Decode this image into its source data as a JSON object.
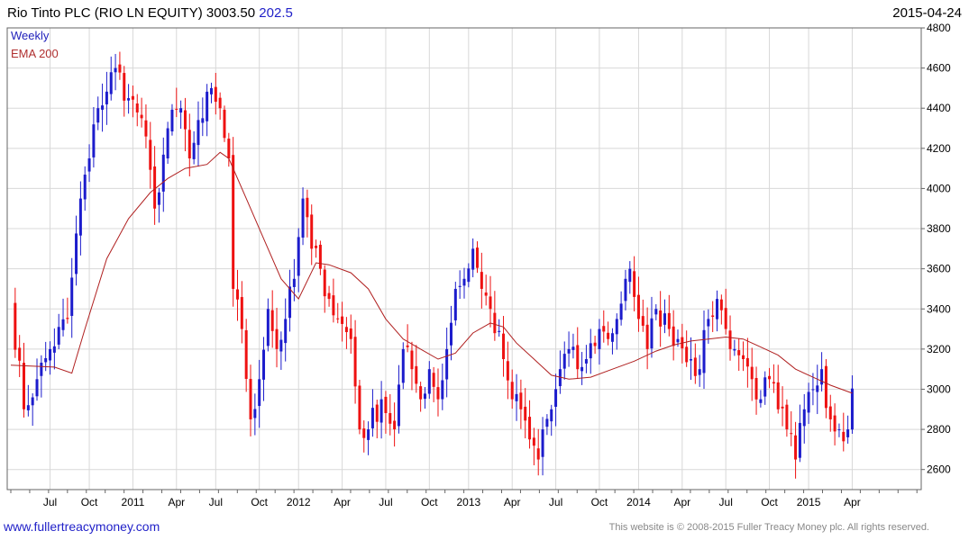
{
  "header": {
    "title": "Rio Tinto PLC (RIO LN EQUITY)",
    "last_price": "3003.50",
    "change": "202.5",
    "date": "2015-04-24"
  },
  "legend": {
    "weekly": "Weekly",
    "ema": "EMA 200"
  },
  "footer": {
    "website": "www.fullertreacymoney.com",
    "copyright": "This website is © 2008-2015 Fuller Treacy Money plc. All rights reserved."
  },
  "colors": {
    "up": "#1c1ccc",
    "down": "#ee1111",
    "ema": "#b02020",
    "grid": "#d8d8d8",
    "axis": "#666666"
  },
  "chart_data": {
    "type": "candlestick",
    "frequency": "weekly",
    "grid": true,
    "legend_position": "top-left",
    "y_axis_side": "right",
    "ylim": [
      2500,
      4800
    ],
    "yticks": [
      2600,
      2800,
      3000,
      3200,
      3400,
      3600,
      3800,
      4000,
      4200,
      4400,
      4600,
      4800
    ],
    "xlim": [
      0,
      208
    ],
    "xticks": [
      {
        "label": "Jul",
        "week": 9
      },
      {
        "label": "Oct",
        "week": 18
      },
      {
        "label": "2011",
        "week": 28
      },
      {
        "label": "Apr",
        "week": 38
      },
      {
        "label": "Jul",
        "week": 47
      },
      {
        "label": "Oct",
        "week": 57
      },
      {
        "label": "2012",
        "week": 66
      },
      {
        "label": "Apr",
        "week": 76
      },
      {
        "label": "Jul",
        "week": 86
      },
      {
        "label": "Oct",
        "week": 96
      },
      {
        "label": "2013",
        "week": 105
      },
      {
        "label": "Apr",
        "week": 115
      },
      {
        "label": "Jul",
        "week": 125
      },
      {
        "label": "Oct",
        "week": 135
      },
      {
        "label": "2014",
        "week": 144
      },
      {
        "label": "Apr",
        "week": 154
      },
      {
        "label": "Jul",
        "week": 164
      },
      {
        "label": "Oct",
        "week": 174
      },
      {
        "label": "2015",
        "week": 183
      },
      {
        "label": "Apr",
        "week": 193
      }
    ],
    "ema_200": [
      [
        0,
        3120
      ],
      [
        10,
        3110
      ],
      [
        14,
        3080
      ],
      [
        17,
        3300
      ],
      [
        22,
        3650
      ],
      [
        27,
        3850
      ],
      [
        32,
        3980
      ],
      [
        36,
        4050
      ],
      [
        40,
        4100
      ],
      [
        45,
        4120
      ],
      [
        48,
        4180
      ],
      [
        50,
        4150
      ],
      [
        54,
        3950
      ],
      [
        58,
        3750
      ],
      [
        62,
        3550
      ],
      [
        66,
        3450
      ],
      [
        70,
        3630
      ],
      [
        73,
        3620
      ],
      [
        78,
        3580
      ],
      [
        82,
        3500
      ],
      [
        86,
        3350
      ],
      [
        90,
        3250
      ],
      [
        94,
        3200
      ],
      [
        98,
        3150
      ],
      [
        102,
        3180
      ],
      [
        106,
        3280
      ],
      [
        110,
        3330
      ],
      [
        113,
        3310
      ],
      [
        116,
        3230
      ],
      [
        120,
        3150
      ],
      [
        124,
        3070
      ],
      [
        128,
        3050
      ],
      [
        133,
        3060
      ],
      [
        138,
        3100
      ],
      [
        143,
        3140
      ],
      [
        148,
        3190
      ],
      [
        152,
        3220
      ],
      [
        156,
        3240
      ],
      [
        160,
        3250
      ],
      [
        164,
        3260
      ],
      [
        168,
        3250
      ],
      [
        172,
        3210
      ],
      [
        176,
        3170
      ],
      [
        180,
        3100
      ],
      [
        184,
        3060
      ],
      [
        188,
        3020
      ],
      [
        193,
        2980
      ]
    ],
    "anchor_closes": [
      [
        0,
        3450
      ],
      [
        3,
        2900
      ],
      [
        6,
        3050
      ],
      [
        9,
        3200
      ],
      [
        13,
        3350
      ],
      [
        16,
        3950
      ],
      [
        18,
        4150
      ],
      [
        20,
        4400
      ],
      [
        24,
        4600
      ],
      [
        27,
        4450
      ],
      [
        30,
        4350
      ],
      [
        33,
        3900
      ],
      [
        36,
        4300
      ],
      [
        39,
        4400
      ],
      [
        41,
        4150
      ],
      [
        44,
        4350
      ],
      [
        46,
        4500
      ],
      [
        48,
        4400
      ],
      [
        50,
        4150
      ],
      [
        51,
        3500
      ],
      [
        53,
        3300
      ],
      [
        55,
        2850
      ],
      [
        57,
        3050
      ],
      [
        59,
        3400
      ],
      [
        61,
        3200
      ],
      [
        63,
        3350
      ],
      [
        65,
        3550
      ],
      [
        67,
        3950
      ],
      [
        69,
        3700
      ],
      [
        71,
        3600
      ],
      [
        73,
        3450
      ],
      [
        75,
        3350
      ],
      [
        78,
        3250
      ],
      [
        80,
        2800
      ],
      [
        82,
        2800
      ],
      [
        85,
        2950
      ],
      [
        88,
        2800
      ],
      [
        90,
        3200
      ],
      [
        92,
        3100
      ],
      [
        94,
        2950
      ],
      [
        96,
        3100
      ],
      [
        98,
        2950
      ],
      [
        100,
        3200
      ],
      [
        102,
        3500
      ],
      [
        104,
        3550
      ],
      [
        106,
        3700
      ],
      [
        108,
        3500
      ],
      [
        110,
        3400
      ],
      [
        113,
        3150
      ],
      [
        115,
        2950
      ],
      [
        117,
        2900
      ],
      [
        119,
        2750
      ],
      [
        121,
        2650
      ],
      [
        122,
        2800
      ],
      [
        124,
        2900
      ],
      [
        126,
        3100
      ],
      [
        128,
        3200
      ],
      [
        130,
        3100
      ],
      [
        132,
        3150
      ],
      [
        135,
        3300
      ],
      [
        137,
        3250
      ],
      [
        139,
        3350
      ],
      [
        141,
        3550
      ],
      [
        142,
        3600
      ],
      [
        144,
        3350
      ],
      [
        146,
        3200
      ],
      [
        148,
        3400
      ],
      [
        151,
        3300
      ],
      [
        153,
        3250
      ],
      [
        156,
        3150
      ],
      [
        158,
        3100
      ],
      [
        160,
        3350
      ],
      [
        162,
        3450
      ],
      [
        164,
        3300
      ],
      [
        166,
        3200
      ],
      [
        168,
        3150
      ],
      [
        170,
        3050
      ],
      [
        172,
        2950
      ],
      [
        174,
        3050
      ],
      [
        176,
        2900
      ],
      [
        178,
        2800
      ],
      [
        180,
        2650
      ],
      [
        182,
        2900
      ],
      [
        184,
        3000
      ],
      [
        186,
        3100
      ],
      [
        188,
        2850
      ],
      [
        190,
        2800
      ],
      [
        192,
        2800
      ],
      [
        193,
        3003.5
      ]
    ],
    "last_close": 3003.5,
    "last_change": 202.5
  }
}
